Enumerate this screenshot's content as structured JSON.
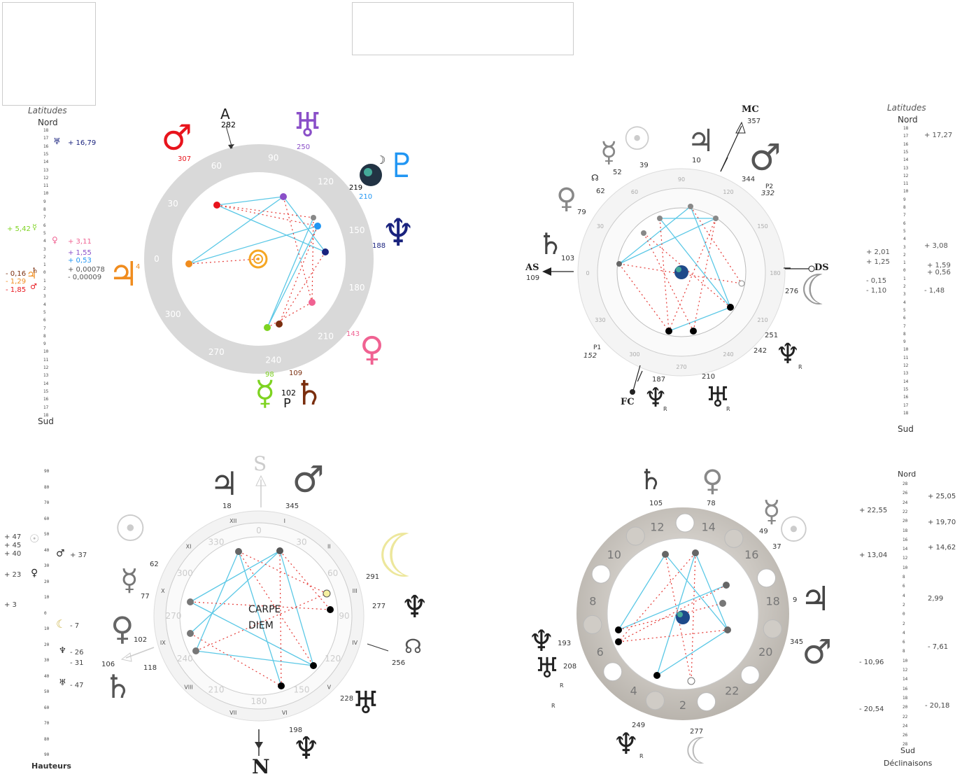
{
  "panel1": {
    "scale_title": "Latitudes",
    "top_label": "Nord",
    "bottom_label": "Sud",
    "ticks": [
      "18",
      "17",
      "16",
      "15",
      "14",
      "13",
      "12",
      "11",
      "10",
      "9",
      "8",
      "7",
      "6",
      "5",
      "4",
      "3",
      "2",
      "1",
      "0",
      "1",
      "2",
      "3",
      "4",
      "5",
      "6",
      "7",
      "8",
      "9",
      "10",
      "11",
      "12",
      "13",
      "14",
      "15",
      "16",
      "17",
      "18"
    ],
    "values": [
      "+ 16,79",
      "+ 5,42",
      "+ 3,11",
      "+ 1,55",
      "+ 0,53",
      "+ 0,00078",
      "- 0,00009",
      "- 0,16",
      "- 1,29",
      "- 1,85"
    ],
    "jupiter_num": "4",
    "planet_numbers": [
      "282",
      "307",
      "250",
      "219",
      "210",
      "188",
      "143",
      "109",
      "98",
      "102"
    ],
    "point_labels": [
      "A",
      "P"
    ],
    "wheel_degrees": [
      "0",
      "30",
      "60",
      "90",
      "120",
      "150",
      "180",
      "210",
      "240",
      "270",
      "300"
    ],
    "colors": {
      "mars": "#e8141c",
      "jupiter": "#f08c1e",
      "uranus": "#8a4fc8",
      "neptune": "#1a237e",
      "pluto": "#2196f3",
      "venus": "#f06292",
      "mercury": "#7ed321",
      "saturn": "#7a2e0e",
      "lines": "#5bc8e6",
      "aspects": "#e53935"
    }
  },
  "panel2": {
    "scale_title": "Latitudes",
    "top_label": "Nord",
    "bottom_label": "Sud",
    "ticks": [
      "18",
      "17",
      "16",
      "15",
      "14",
      "13",
      "12",
      "11",
      "10",
      "9",
      "8",
      "7",
      "6",
      "5",
      "4",
      "3",
      "2",
      "1",
      "0",
      "1",
      "2",
      "3",
      "4",
      "5",
      "6",
      "7",
      "8",
      "9",
      "10",
      "11",
      "12",
      "13",
      "14",
      "15",
      "16",
      "17",
      "18"
    ],
    "values": [
      "+ 17,27",
      "+ 3,08",
      "+ 2,01",
      "+ 1,25",
      "+ 1,59",
      "+ 0,56",
      "- 0,15",
      "- 1,10",
      "- 1,48"
    ],
    "axes": [
      "MC",
      "AS",
      "DS",
      "FC"
    ],
    "axis_numbers": [
      "357",
      "109",
      "276",
      "187"
    ],
    "planet_numbers": [
      "52",
      "39",
      "10",
      "344",
      "62",
      "79",
      "103",
      "332",
      "251",
      "242",
      "152",
      "210"
    ],
    "point_labels": [
      "P2",
      "P1",
      "R",
      "R",
      "R"
    ],
    "wheel_degrees": [
      "0",
      "30",
      "60",
      "90",
      "120",
      "150",
      "180",
      "210",
      "240",
      "270",
      "300",
      "330"
    ]
  },
  "panel3": {
    "scale_title": "Hauteurs",
    "ticks": [
      "90",
      "80",
      "70",
      "60",
      "50",
      "40",
      "30",
      "20",
      "10",
      "0",
      "10",
      "20",
      "30",
      "40",
      "50",
      "60",
      "70",
      "80",
      "90"
    ],
    "values": [
      "+ 47",
      "+ 45",
      "+ 40",
      "+ 37",
      "+ 23",
      "+ 3",
      "- 7",
      "- 26",
      "- 31",
      "- 47"
    ],
    "center_text_1": "CARPE",
    "center_text_2": "DIEM",
    "directions": [
      "S",
      "N"
    ],
    "planet_numbers": [
      "18",
      "345",
      "62",
      "77",
      "291",
      "277",
      "102",
      "106",
      "118",
      "256",
      "228",
      "198"
    ],
    "roman": [
      "I",
      "II",
      "III",
      "IV",
      "V",
      "VI",
      "VII",
      "VIII",
      "IX",
      "X",
      "XI",
      "XII"
    ],
    "wheel_degrees": [
      "0",
      "30",
      "60",
      "90",
      "120",
      "150",
      "180",
      "210",
      "240",
      "270",
      "300",
      "330"
    ]
  },
  "panel4": {
    "scale_title": "Déclinaisons",
    "top_label": "Nord",
    "bottom_label": "Sud",
    "ticks": [
      "28",
      "26",
      "24",
      "22",
      "20",
      "18",
      "16",
      "14",
      "12",
      "10",
      "8",
      "6",
      "4",
      "2",
      "0",
      "2",
      "4",
      "6",
      "8",
      "10",
      "12",
      "14",
      "16",
      "18",
      "20",
      "22",
      "24",
      "26",
      "28"
    ],
    "values_right": [
      "+ 25,05",
      "+ 19,70",
      "+ 14,62",
      "2,99",
      "- 7,61",
      "- 20,18"
    ],
    "values_left": [
      "+ 22,55",
      "+ 13,04",
      "- 10,96",
      "- 20,54"
    ],
    "planet_numbers": [
      "105",
      "78",
      "49",
      "37",
      "9",
      "345",
      "193",
      "208",
      "249",
      "277"
    ],
    "point_labels": [
      "R",
      "R",
      "R"
    ],
    "moon_days": [
      "2",
      "4",
      "6",
      "8",
      "10",
      "12",
      "14",
      "16",
      "18",
      "20",
      "22"
    ]
  }
}
